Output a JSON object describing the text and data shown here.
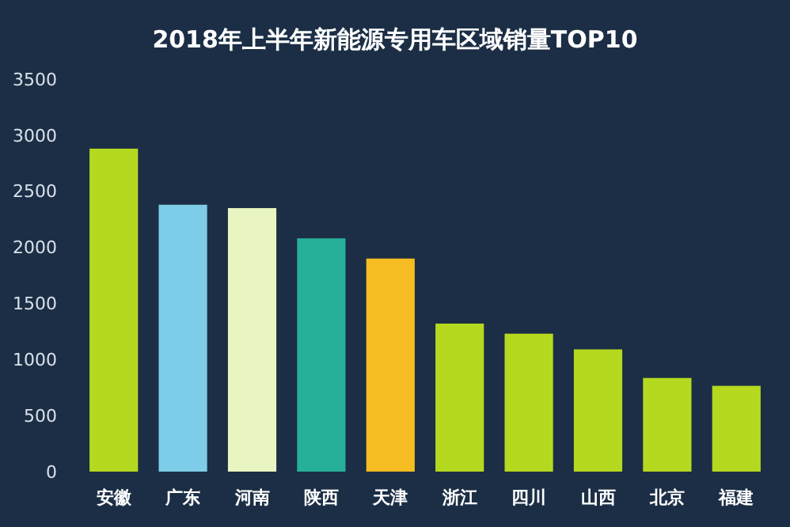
{
  "chart_data": {
    "type": "bar",
    "title": "2018年上半年新能源专用车区域销量TOP10",
    "categories": [
      "安徽",
      "广东",
      "河南",
      "陕西",
      "天津",
      "浙江",
      "四川",
      "山西",
      "北京",
      "福建"
    ],
    "values": [
      2880,
      2380,
      2350,
      2080,
      1900,
      1320,
      1230,
      1090,
      835,
      765
    ],
    "colors": [
      "#b5d91f",
      "#7ecde8",
      "#e8f5c0",
      "#26b09a",
      "#f5bd21",
      "#b5d91f",
      "#b5d91f",
      "#b5d91f",
      "#b5d91f",
      "#b5d91f"
    ],
    "ylim": [
      0,
      3500
    ],
    "yticks": [
      0,
      500,
      1000,
      1500,
      2000,
      2500,
      3000,
      3500
    ]
  }
}
